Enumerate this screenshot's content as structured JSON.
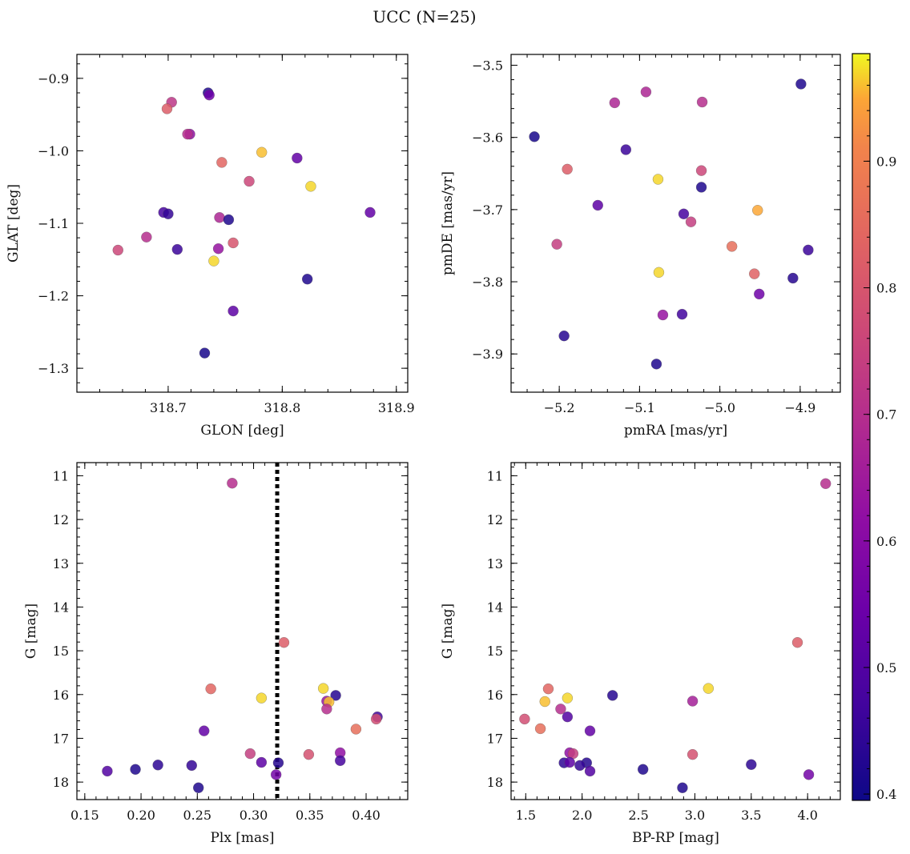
{
  "figure": {
    "title": "UCC (N=25)"
  },
  "colorbar": {
    "cmap": "plasma",
    "vmin": 0.395,
    "vmax": 0.985,
    "ticks": [
      "0.4",
      "0.5",
      "0.6",
      "0.7",
      "0.8",
      "0.9"
    ],
    "tick_values": [
      0.4,
      0.5,
      0.6,
      0.7,
      0.8,
      0.9
    ]
  },
  "chart_data": [
    {
      "type": "scatter",
      "xlabel": "GLON [deg]",
      "ylabel": "GLAT [deg]",
      "xlim": [
        318.62,
        318.91
      ],
      "ylim": [
        -1.333,
        -0.867
      ],
      "xticks": [
        318.7,
        318.8,
        318.9
      ],
      "xticklabels": [
        "318.7",
        "318.8",
        "318.9"
      ],
      "yticks": [
        -0.9,
        -1.0,
        -1.1,
        -1.2,
        -1.3
      ],
      "yticklabels": [
        "−0.9",
        "−1.0",
        "−1.1",
        "−1.2",
        "−1.3"
      ],
      "invert_y": false,
      "points": [
        {
          "x": 318.735,
          "y": -0.92,
          "c": 0.42
        },
        {
          "x": 318.736,
          "y": -0.923,
          "c": 0.55
        },
        {
          "x": 318.703,
          "y": -0.933,
          "c": 0.72
        },
        {
          "x": 318.699,
          "y": -0.942,
          "c": 0.82
        },
        {
          "x": 318.719,
          "y": -0.977,
          "c": 0.62
        },
        {
          "x": 318.717,
          "y": -0.977,
          "c": 0.7
        },
        {
          "x": 318.782,
          "y": -1.002,
          "c": 0.96
        },
        {
          "x": 318.813,
          "y": -1.01,
          "c": 0.53
        },
        {
          "x": 318.747,
          "y": -1.016,
          "c": 0.84
        },
        {
          "x": 318.771,
          "y": -1.042,
          "c": 0.76
        },
        {
          "x": 318.825,
          "y": -1.049,
          "c": 0.97
        },
        {
          "x": 318.696,
          "y": -1.085,
          "c": 0.48
        },
        {
          "x": 318.7,
          "y": -1.087,
          "c": 0.45
        },
        {
          "x": 318.877,
          "y": -1.085,
          "c": 0.53
        },
        {
          "x": 318.745,
          "y": -1.092,
          "c": 0.68
        },
        {
          "x": 318.753,
          "y": -1.095,
          "c": 0.42
        },
        {
          "x": 318.681,
          "y": -1.119,
          "c": 0.7
        },
        {
          "x": 318.757,
          "y": -1.127,
          "c": 0.8
        },
        {
          "x": 318.656,
          "y": -1.137,
          "c": 0.76
        },
        {
          "x": 318.708,
          "y": -1.136,
          "c": 0.46
        },
        {
          "x": 318.744,
          "y": -1.135,
          "c": 0.63
        },
        {
          "x": 318.74,
          "y": -1.152,
          "c": 0.97
        },
        {
          "x": 318.822,
          "y": -1.177,
          "c": 0.42
        },
        {
          "x": 318.757,
          "y": -1.221,
          "c": 0.52
        },
        {
          "x": 318.732,
          "y": -1.279,
          "c": 0.41
        }
      ]
    },
    {
      "type": "scatter",
      "xlabel": "pmRA [mas/yr]",
      "ylabel": "pmDE [mas/yr]",
      "xlim": [
        -5.26,
        -4.85
      ],
      "ylim": [
        -3.953,
        -3.485
      ],
      "xticks": [
        -5.2,
        -5.1,
        -5.0,
        -4.9
      ],
      "xticklabels": [
        "−5.2",
        "−5.1",
        "−5.0",
        "−4.9"
      ],
      "yticks": [
        -3.5,
        -3.6,
        -3.7,
        -3.8,
        -3.9
      ],
      "yticklabels": [
        "−3.5",
        "−3.6",
        "−3.7",
        "−3.8",
        "−3.9"
      ],
      "invert_y": false,
      "points": [
        {
          "x": -4.899,
          "y": -3.526,
          "c": 0.42
        },
        {
          "x": -5.092,
          "y": -3.537,
          "c": 0.68
        },
        {
          "x": -5.131,
          "y": -3.552,
          "c": 0.68
        },
        {
          "x": -5.022,
          "y": -3.551,
          "c": 0.7
        },
        {
          "x": -5.231,
          "y": -3.599,
          "c": 0.41
        },
        {
          "x": -5.117,
          "y": -3.617,
          "c": 0.46
        },
        {
          "x": -5.19,
          "y": -3.644,
          "c": 0.82
        },
        {
          "x": -5.023,
          "y": -3.646,
          "c": 0.76
        },
        {
          "x": -5.077,
          "y": -3.658,
          "c": 0.97
        },
        {
          "x": -5.023,
          "y": -3.669,
          "c": 0.42
        },
        {
          "x": -5.152,
          "y": -3.694,
          "c": 0.52
        },
        {
          "x": -4.953,
          "y": -3.701,
          "c": 0.95
        },
        {
          "x": -5.045,
          "y": -3.706,
          "c": 0.48
        },
        {
          "x": -5.036,
          "y": -3.717,
          "c": 0.74
        },
        {
          "x": -5.203,
          "y": -3.748,
          "c": 0.74
        },
        {
          "x": -4.985,
          "y": -3.751,
          "c": 0.86
        },
        {
          "x": -4.89,
          "y": -3.756,
          "c": 0.46
        },
        {
          "x": -5.076,
          "y": -3.787,
          "c": 0.97
        },
        {
          "x": -4.957,
          "y": -3.789,
          "c": 0.83
        },
        {
          "x": -4.909,
          "y": -3.795,
          "c": 0.43
        },
        {
          "x": -4.951,
          "y": -3.817,
          "c": 0.55
        },
        {
          "x": -5.071,
          "y": -3.846,
          "c": 0.63
        },
        {
          "x": -5.047,
          "y": -3.845,
          "c": 0.47
        },
        {
          "x": -5.194,
          "y": -3.875,
          "c": 0.43
        },
        {
          "x": -5.079,
          "y": -3.914,
          "c": 0.42
        }
      ]
    },
    {
      "type": "scatter",
      "xlabel": "Plx [mas]",
      "ylabel": "G [mag]",
      "xlim": [
        0.143,
        0.437
      ],
      "ylim": [
        18.4,
        10.7
      ],
      "xticks": [
        0.15,
        0.2,
        0.25,
        0.3,
        0.35,
        0.4
      ],
      "xticklabels": [
        "0.15",
        "0.20",
        "0.25",
        "0.30",
        "0.35",
        "0.40"
      ],
      "yticks": [
        11,
        12,
        13,
        14,
        15,
        16,
        17,
        18
      ],
      "yticklabels": [
        "11",
        "12",
        "13",
        "14",
        "15",
        "16",
        "17",
        "18"
      ],
      "invert_y": true,
      "vline": {
        "x": 0.321,
        "style": "dotted",
        "color": "#000000"
      },
      "points": [
        {
          "x": 0.281,
          "y": 11.17,
          "c": 0.7
        },
        {
          "x": 0.327,
          "y": 14.81,
          "c": 0.82
        },
        {
          "x": 0.262,
          "y": 15.87,
          "c": 0.84
        },
        {
          "x": 0.362,
          "y": 15.86,
          "c": 0.97
        },
        {
          "x": 0.373,
          "y": 16.02,
          "c": 0.43
        },
        {
          "x": 0.307,
          "y": 16.08,
          "c": 0.97
        },
        {
          "x": 0.365,
          "y": 16.15,
          "c": 0.63
        },
        {
          "x": 0.367,
          "y": 16.17,
          "c": 0.96
        },
        {
          "x": 0.365,
          "y": 16.33,
          "c": 0.7
        },
        {
          "x": 0.41,
          "y": 16.51,
          "c": 0.47
        },
        {
          "x": 0.409,
          "y": 16.56,
          "c": 0.78
        },
        {
          "x": 0.256,
          "y": 16.83,
          "c": 0.53
        },
        {
          "x": 0.391,
          "y": 16.79,
          "c": 0.86
        },
        {
          "x": 0.297,
          "y": 17.35,
          "c": 0.74
        },
        {
          "x": 0.349,
          "y": 17.37,
          "c": 0.79
        },
        {
          "x": 0.377,
          "y": 17.33,
          "c": 0.62
        },
        {
          "x": 0.307,
          "y": 17.55,
          "c": 0.52
        },
        {
          "x": 0.322,
          "y": 17.56,
          "c": 0.43
        },
        {
          "x": 0.377,
          "y": 17.51,
          "c": 0.48
        },
        {
          "x": 0.215,
          "y": 17.61,
          "c": 0.44
        },
        {
          "x": 0.245,
          "y": 17.62,
          "c": 0.45
        },
        {
          "x": 0.195,
          "y": 17.71,
          "c": 0.42
        },
        {
          "x": 0.17,
          "y": 17.75,
          "c": 0.5
        },
        {
          "x": 0.32,
          "y": 17.83,
          "c": 0.56
        },
        {
          "x": 0.251,
          "y": 18.13,
          "c": 0.42
        }
      ]
    },
    {
      "type": "scatter",
      "xlabel": "BP-RP [mag]",
      "ylabel": "G [mag]",
      "xlim": [
        1.37,
        4.29
      ],
      "ylim": [
        18.4,
        10.7
      ],
      "xticks": [
        1.5,
        2.0,
        2.5,
        3.0,
        3.5,
        4.0
      ],
      "xticklabels": [
        "1.5",
        "2.0",
        "2.5",
        "3.0",
        "3.5",
        "4.0"
      ],
      "yticks": [
        11,
        12,
        13,
        14,
        15,
        16,
        17,
        18
      ],
      "yticklabels": [
        "11",
        "12",
        "13",
        "14",
        "15",
        "16",
        "17",
        "18"
      ],
      "invert_y": true,
      "points": [
        {
          "x": 4.16,
          "y": 11.18,
          "c": 0.7
        },
        {
          "x": 3.91,
          "y": 14.81,
          "c": 0.82
        },
        {
          "x": 1.7,
          "y": 15.87,
          "c": 0.84
        },
        {
          "x": 3.12,
          "y": 15.86,
          "c": 0.97
        },
        {
          "x": 2.27,
          "y": 16.02,
          "c": 0.43
        },
        {
          "x": 1.87,
          "y": 16.08,
          "c": 0.97
        },
        {
          "x": 1.67,
          "y": 16.16,
          "c": 0.96
        },
        {
          "x": 2.98,
          "y": 16.15,
          "c": 0.66
        },
        {
          "x": 1.81,
          "y": 16.33,
          "c": 0.7
        },
        {
          "x": 1.87,
          "y": 16.51,
          "c": 0.5
        },
        {
          "x": 1.49,
          "y": 16.56,
          "c": 0.78
        },
        {
          "x": 1.63,
          "y": 16.78,
          "c": 0.86
        },
        {
          "x": 2.07,
          "y": 16.83,
          "c": 0.53
        },
        {
          "x": 1.89,
          "y": 17.33,
          "c": 0.62
        },
        {
          "x": 1.92,
          "y": 17.35,
          "c": 0.74
        },
        {
          "x": 2.98,
          "y": 17.37,
          "c": 0.79
        },
        {
          "x": 1.84,
          "y": 17.56,
          "c": 0.44
        },
        {
          "x": 1.89,
          "y": 17.55,
          "c": 0.52
        },
        {
          "x": 2.04,
          "y": 17.56,
          "c": 0.43
        },
        {
          "x": 1.98,
          "y": 17.62,
          "c": 0.45
        },
        {
          "x": 3.5,
          "y": 17.6,
          "c": 0.44
        },
        {
          "x": 2.54,
          "y": 17.71,
          "c": 0.42
        },
        {
          "x": 2.07,
          "y": 17.75,
          "c": 0.5
        },
        {
          "x": 4.01,
          "y": 17.83,
          "c": 0.56
        },
        {
          "x": 2.89,
          "y": 18.13,
          "c": 0.42
        }
      ]
    }
  ]
}
